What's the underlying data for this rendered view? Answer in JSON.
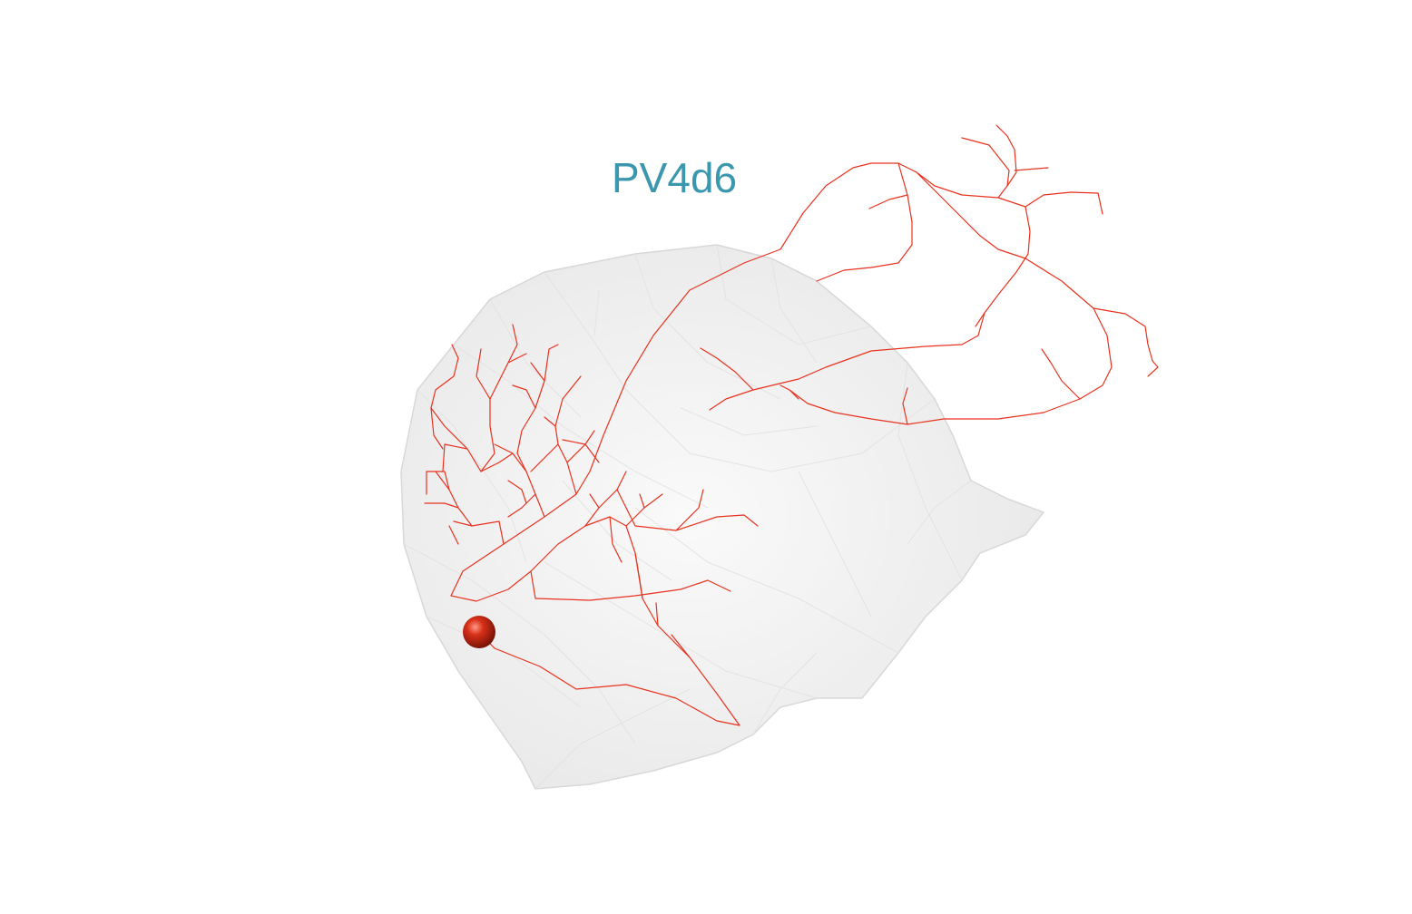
{
  "label": {
    "text": "PV4d6",
    "color": "#3b97ad"
  },
  "colors": {
    "neuron": "#e8321e",
    "soma": "#c0210f",
    "mesh_fill": "#ececec",
    "mesh_edge": "#d9d9d9",
    "background": "#ffffff"
  }
}
